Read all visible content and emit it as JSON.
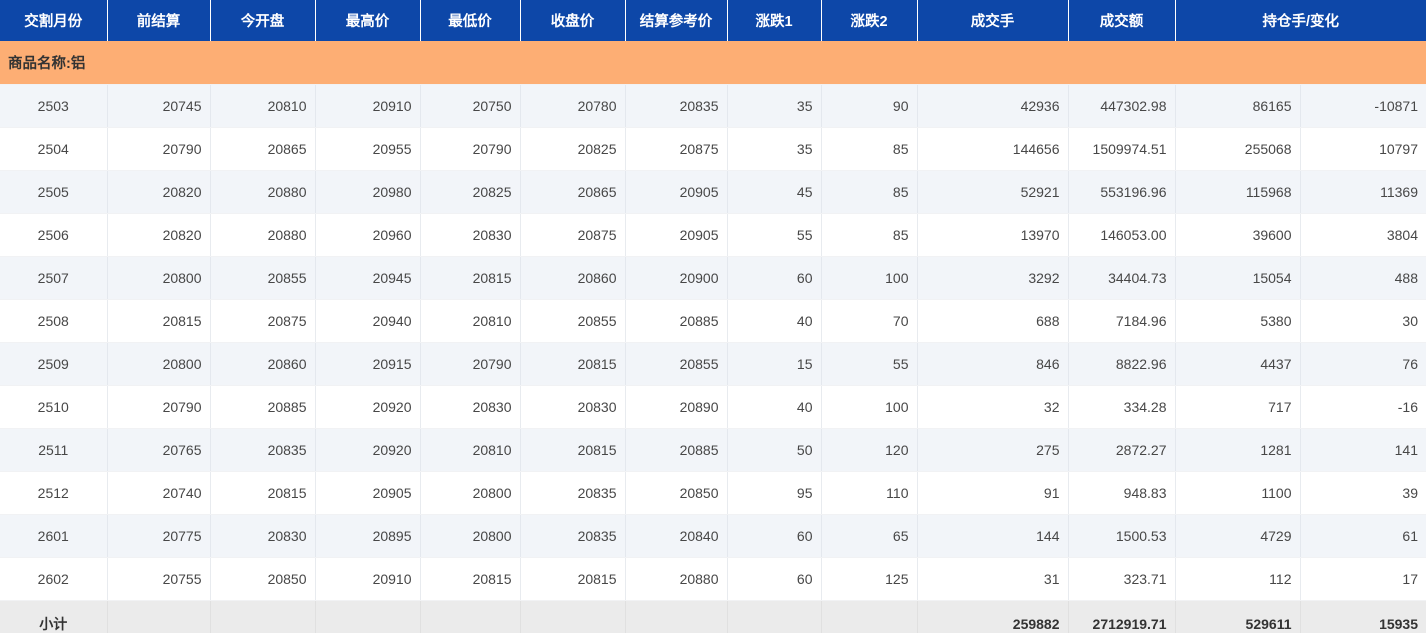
{
  "table": {
    "headers": [
      "交割月份",
      "前结算",
      "今开盘",
      "最高价",
      "最低价",
      "收盘价",
      "结算参考价",
      "涨跌1",
      "涨跌2",
      "成交手",
      "成交额",
      "持仓手/变化"
    ],
    "group_label": "商品名称:铝",
    "rows": [
      [
        "2503",
        "20745",
        "20810",
        "20910",
        "20750",
        "20780",
        "20835",
        "35",
        "90",
        "42936",
        "447302.98",
        "86165",
        "-10871"
      ],
      [
        "2504",
        "20790",
        "20865",
        "20955",
        "20790",
        "20825",
        "20875",
        "35",
        "85",
        "144656",
        "1509974.51",
        "255068",
        "10797"
      ],
      [
        "2505",
        "20820",
        "20880",
        "20980",
        "20825",
        "20865",
        "20905",
        "45",
        "85",
        "52921",
        "553196.96",
        "115968",
        "11369"
      ],
      [
        "2506",
        "20820",
        "20880",
        "20960",
        "20830",
        "20875",
        "20905",
        "55",
        "85",
        "13970",
        "146053.00",
        "39600",
        "3804"
      ],
      [
        "2507",
        "20800",
        "20855",
        "20945",
        "20815",
        "20860",
        "20900",
        "60",
        "100",
        "3292",
        "34404.73",
        "15054",
        "488"
      ],
      [
        "2508",
        "20815",
        "20875",
        "20940",
        "20810",
        "20855",
        "20885",
        "40",
        "70",
        "688",
        "7184.96",
        "5380",
        "30"
      ],
      [
        "2509",
        "20800",
        "20860",
        "20915",
        "20790",
        "20815",
        "20855",
        "15",
        "55",
        "846",
        "8822.96",
        "4437",
        "76"
      ],
      [
        "2510",
        "20790",
        "20885",
        "20920",
        "20830",
        "20830",
        "20890",
        "40",
        "100",
        "32",
        "334.28",
        "717",
        "-16"
      ],
      [
        "2511",
        "20765",
        "20835",
        "20920",
        "20810",
        "20815",
        "20885",
        "50",
        "120",
        "275",
        "2872.27",
        "1281",
        "141"
      ],
      [
        "2512",
        "20740",
        "20815",
        "20905",
        "20800",
        "20835",
        "20850",
        "95",
        "110",
        "91",
        "948.83",
        "1100",
        "39"
      ],
      [
        "2601",
        "20775",
        "20830",
        "20895",
        "20800",
        "20835",
        "20840",
        "60",
        "65",
        "144",
        "1500.53",
        "4729",
        "61"
      ],
      [
        "2602",
        "20755",
        "20850",
        "20910",
        "20815",
        "20815",
        "20880",
        "60",
        "125",
        "31",
        "323.71",
        "112",
        "17"
      ]
    ],
    "subtotal": {
      "label": "小计",
      "volume": "259882",
      "turnover": "2712919.71",
      "open_interest": "529611",
      "change": "15935"
    }
  },
  "colors": {
    "header_bg": "#0d47a8",
    "group_bg": "#fdae74",
    "stripe_bg": "#f2f5f9",
    "subtotal_bg": "#ebebeb"
  }
}
